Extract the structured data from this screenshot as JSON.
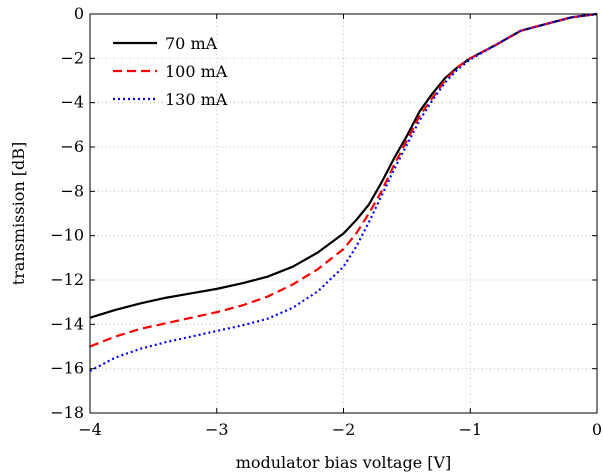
{
  "chart_data": {
    "type": "line",
    "xlabel": "modulator bias voltage [V]",
    "ylabel": "transmission [dB]",
    "xlim": [
      -4,
      0
    ],
    "ylim": [
      -18,
      0
    ],
    "xticks": [
      -4,
      -3,
      -2,
      -1,
      0
    ],
    "yticks": [
      -18,
      -16,
      -14,
      -12,
      -10,
      -8,
      -6,
      -4,
      -2,
      0
    ],
    "xtick_labels": [
      "−4",
      "−3",
      "−2",
      "−1",
      "0"
    ],
    "ytick_labels": [
      "−18",
      "−16",
      "−14",
      "−12",
      "−10",
      "−8",
      "−6",
      "−4",
      "−2",
      "0"
    ],
    "grid": true,
    "legend_position": "top-left",
    "series": [
      {
        "name": "70 mA",
        "color": "#000000",
        "style": "solid",
        "x": [
          -4.0,
          -3.8,
          -3.6,
          -3.4,
          -3.2,
          -3.0,
          -2.8,
          -2.6,
          -2.4,
          -2.2,
          -2.0,
          -1.9,
          -1.8,
          -1.7,
          -1.6,
          -1.5,
          -1.4,
          -1.3,
          -1.2,
          -1.1,
          -1.0,
          -0.8,
          -0.6,
          -0.4,
          -0.2,
          0.0
        ],
        "y": [
          -13.7,
          -13.35,
          -13.05,
          -12.8,
          -12.6,
          -12.4,
          -12.15,
          -11.85,
          -11.4,
          -10.75,
          -9.9,
          -9.3,
          -8.6,
          -7.6,
          -6.5,
          -5.5,
          -4.4,
          -3.6,
          -2.9,
          -2.4,
          -2.0,
          -1.4,
          -0.75,
          -0.45,
          -0.15,
          0.0
        ]
      },
      {
        "name": "100 mA",
        "color": "#ff0000",
        "style": "dashed",
        "x": [
          -4.0,
          -3.8,
          -3.6,
          -3.4,
          -3.2,
          -3.0,
          -2.8,
          -2.6,
          -2.4,
          -2.2,
          -2.0,
          -1.9,
          -1.8,
          -1.7,
          -1.6,
          -1.5,
          -1.4,
          -1.3,
          -1.2,
          -1.1,
          -1.0,
          -0.8,
          -0.6,
          -0.4,
          -0.2,
          0.0
        ],
        "y": [
          -15.0,
          -14.55,
          -14.2,
          -13.95,
          -13.7,
          -13.45,
          -13.15,
          -12.75,
          -12.2,
          -11.5,
          -10.6,
          -9.9,
          -9.0,
          -8.0,
          -6.8,
          -5.7,
          -4.6,
          -3.8,
          -3.0,
          -2.4,
          -2.0,
          -1.4,
          -0.75,
          -0.45,
          -0.15,
          0.0
        ]
      },
      {
        "name": "130 mA",
        "color": "#0000ff",
        "style": "dotted",
        "x": [
          -4.0,
          -3.8,
          -3.6,
          -3.4,
          -3.2,
          -3.0,
          -2.8,
          -2.6,
          -2.4,
          -2.2,
          -2.0,
          -1.9,
          -1.8,
          -1.7,
          -1.6,
          -1.5,
          -1.4,
          -1.3,
          -1.2,
          -1.1,
          -1.0,
          -0.8,
          -0.6,
          -0.4,
          -0.2,
          0.0
        ],
        "y": [
          -16.1,
          -15.5,
          -15.1,
          -14.8,
          -14.55,
          -14.3,
          -14.05,
          -13.75,
          -13.25,
          -12.5,
          -11.4,
          -10.5,
          -9.4,
          -8.2,
          -7.0,
          -5.9,
          -4.8,
          -3.9,
          -3.1,
          -2.5,
          -2.05,
          -1.4,
          -0.75,
          -0.45,
          -0.15,
          0.0
        ]
      }
    ]
  }
}
